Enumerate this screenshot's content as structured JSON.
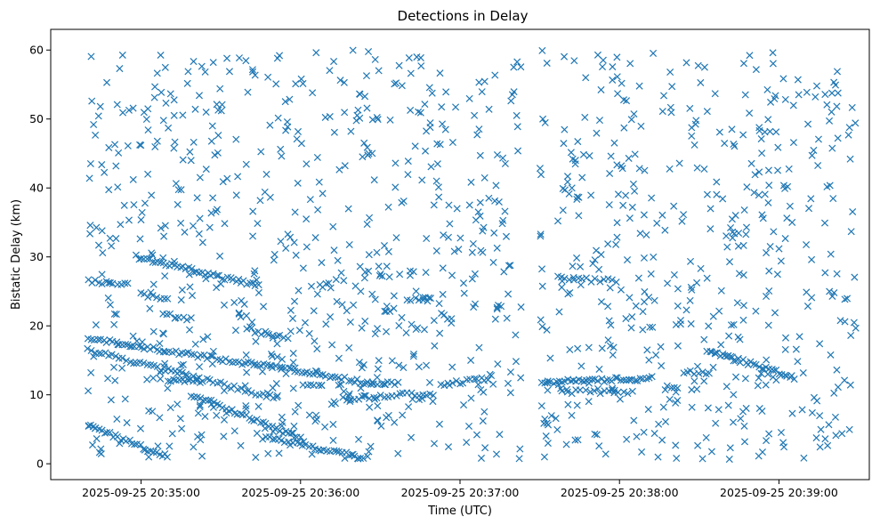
{
  "chart_data": {
    "type": "scatter",
    "title": "Detections in Delay",
    "xlabel": "Time (UTC)",
    "ylabel": "Bistatic Delay (km)",
    "marker": "x",
    "color": "#1f77b4",
    "grid": false,
    "legend": "none",
    "xlim": [
      "2025-09-25 20:34:26",
      "2025-09-25 20:39:34"
    ],
    "ylim": [
      -2.3,
      63
    ],
    "x_ticks": [
      "2025-09-25 20:35:00",
      "2025-09-25 20:36:00",
      "2025-09-25 20:37:00",
      "2025-09-25 20:38:00",
      "2025-09-25 20:39:00"
    ],
    "y_ticks": [
      0,
      10,
      20,
      30,
      40,
      50,
      60
    ],
    "tracks": [
      {
        "t_start": "2025-09-25 20:34:40",
        "t_end": "2025-09-25 20:36:25",
        "y_start": 18.2,
        "y_end": 11.8,
        "count": 90
      },
      {
        "t_start": "2025-09-25 20:36:25",
        "t_end": "2025-09-25 20:36:37",
        "y_start": 11.8,
        "y_end": 11.7,
        "count": 10
      },
      {
        "t_start": "2025-09-25 20:34:40",
        "t_end": "2025-09-25 20:35:51",
        "y_start": 16.5,
        "y_end": 9.5,
        "count": 55
      },
      {
        "t_start": "2025-09-25 20:35:19",
        "t_end": "2025-09-25 20:36:01",
        "y_start": 10.0,
        "y_end": 3.5,
        "count": 40
      },
      {
        "t_start": "2025-09-25 20:34:40",
        "t_end": "2025-09-25 20:35:10",
        "y_start": 5.5,
        "y_end": 1.0,
        "count": 30
      },
      {
        "t_start": "2025-09-25 20:35:46",
        "t_end": "2025-09-25 20:36:25",
        "y_start": 3.8,
        "y_end": 0.8,
        "count": 35
      },
      {
        "t_start": "2025-09-25 20:34:58",
        "t_end": "2025-09-25 20:35:44",
        "y_start": 30.0,
        "y_end": 25.8,
        "count": 45
      },
      {
        "t_start": "2025-09-25 20:35:40",
        "t_end": "2025-09-25 20:35:55",
        "y_start": 19.5,
        "y_end": 18.2,
        "count": 12
      },
      {
        "t_start": "2025-09-25 20:35:08",
        "t_end": "2025-09-25 20:35:19",
        "y_start": 21.8,
        "y_end": 21.0,
        "count": 8
      },
      {
        "t_start": "2025-09-25 20:35:10",
        "t_end": "2025-09-25 20:35:22",
        "y_start": 12.2,
        "y_end": 12.0,
        "count": 12
      },
      {
        "t_start": "2025-09-25 20:34:40",
        "t_end": "2025-09-25 20:34:55",
        "y_start": 26.5,
        "y_end": 26.0,
        "count": 12
      },
      {
        "t_start": "2025-09-25 20:35:00",
        "t_end": "2025-09-25 20:35:10",
        "y_start": 24.5,
        "y_end": 24.0,
        "count": 8
      },
      {
        "t_start": "2025-09-25 20:36:01",
        "t_end": "2025-09-25 20:36:08",
        "y_start": 11.5,
        "y_end": 11.5,
        "count": 6
      },
      {
        "t_start": "2025-09-25 20:36:16",
        "t_end": "2025-09-25 20:36:50",
        "y_start": 9.5,
        "y_end": 10.2,
        "count": 25
      },
      {
        "t_start": "2025-09-25 20:36:40",
        "t_end": "2025-09-25 20:36:49",
        "y_start": 23.8,
        "y_end": 23.8,
        "count": 7
      },
      {
        "t_start": "2025-09-25 20:36:53",
        "t_end": "2025-09-25 20:37:12",
        "y_start": 11.5,
        "y_end": 12.5,
        "count": 15
      },
      {
        "t_start": "2025-09-25 20:37:31",
        "t_end": "2025-09-25 20:38:12",
        "y_start": 11.8,
        "y_end": 12.4,
        "count": 40
      },
      {
        "t_start": "2025-09-25 20:37:40",
        "t_end": "2025-09-25 20:38:05",
        "y_start": 10.5,
        "y_end": 10.3,
        "count": 15
      },
      {
        "t_start": "2025-09-25 20:37:38",
        "t_end": "2025-09-25 20:37:59",
        "y_start": 26.8,
        "y_end": 26.5,
        "count": 14
      },
      {
        "t_start": "2025-09-25 20:38:24",
        "t_end": "2025-09-25 20:38:34",
        "y_start": 13.3,
        "y_end": 13.2,
        "count": 8
      },
      {
        "t_start": "2025-09-25 20:38:33",
        "t_end": "2025-09-25 20:39:06",
        "y_start": 16.5,
        "y_end": 12.5,
        "count": 35
      },
      {
        "t_start": "2025-09-25 20:38:17",
        "t_end": "2025-09-25 20:38:22",
        "y_start": 11.0,
        "y_end": 11.0,
        "count": 5
      }
    ],
    "clutter": {
      "t_start": "2025-09-25 20:34:40",
      "t_end": "2025-09-25 20:39:29",
      "y_range": [
        0.5,
        60
      ],
      "count": 1150,
      "gap": [
        "2025-09-25 20:37:24",
        "2025-09-25 20:37:30"
      ]
    }
  }
}
